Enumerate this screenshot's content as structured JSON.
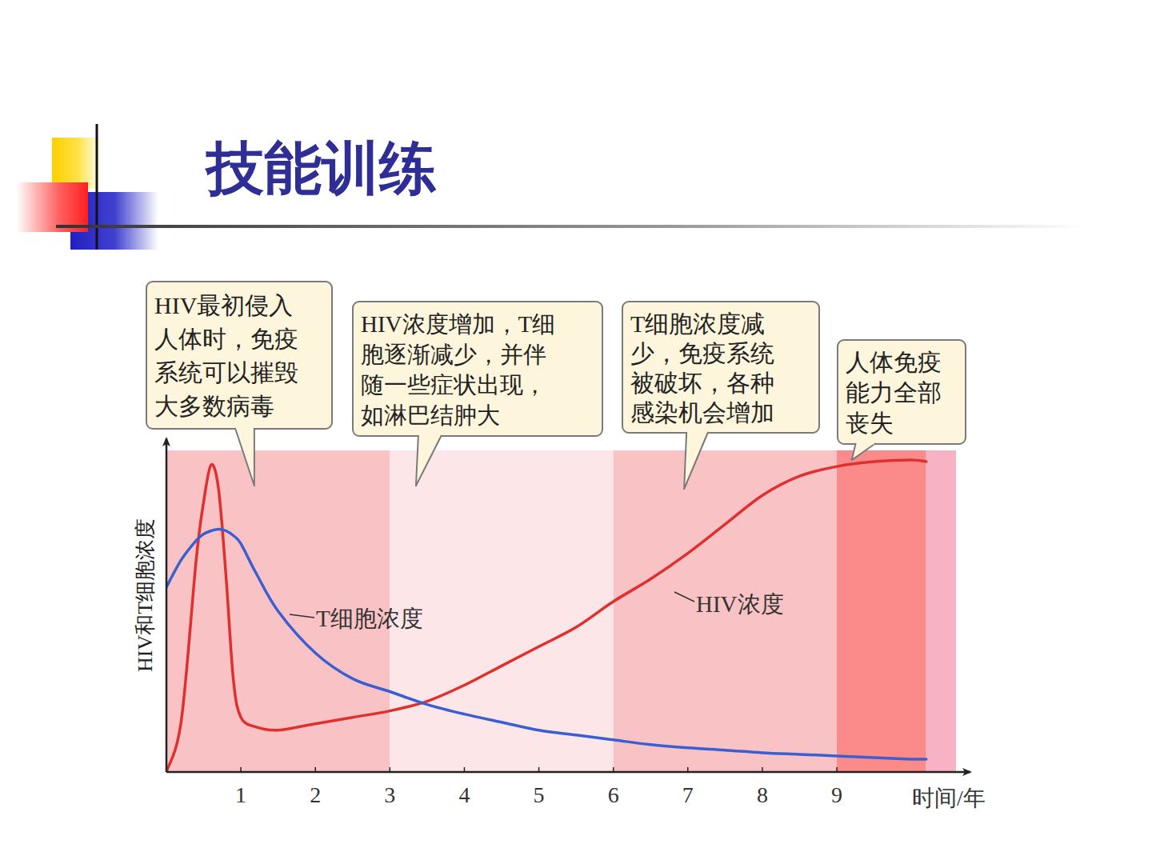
{
  "chart_data": {
    "type": "line",
    "title": "技能训练",
    "x_label": "时间/年",
    "y_label": "HIV和T细胞浓度",
    "x": [
      0,
      0.2,
      0.4,
      0.5,
      0.6,
      0.7,
      0.8,
      0.9,
      1,
      1.2,
      1.5,
      2,
      2.5,
      3,
      3.5,
      4,
      4.5,
      5,
      5.5,
      6,
      6.5,
      7,
      7.5,
      8,
      8.5,
      9,
      9.5,
      10,
      10.2
    ],
    "series": [
      {
        "name": "HIV浓度",
        "color": "#e0302e",
        "values": [
          0,
          16,
          66,
          84,
          95.5,
          88,
          61,
          28.5,
          17,
          14,
          13,
          15,
          17,
          19,
          22,
          27,
          33,
          39,
          45,
          53,
          60,
          68,
          77,
          86,
          92,
          95,
          96.5,
          97,
          96.5
        ]
      },
      {
        "name": "T细胞浓度",
        "color": "#3a5fd0",
        "values": [
          57.5,
          66,
          72,
          74,
          75,
          75.5,
          75,
          73.5,
          71,
          62,
          50,
          37,
          29,
          25,
          21,
          18,
          15.5,
          13,
          11.5,
          10,
          8.5,
          7.5,
          6.8,
          6,
          5.5,
          5,
          4.5,
          4,
          4
        ]
      }
    ],
    "xlim": [
      0,
      10.6
    ],
    "xticks": [
      1,
      2,
      3,
      4,
      5,
      6,
      7,
      8,
      9
    ],
    "ylim": [
      0,
      100
    ],
    "tick_labels": "x",
    "grid": false,
    "phases": [
      {
        "start": 0,
        "end": 3,
        "color": "#f9c3c6"
      },
      {
        "start": 3,
        "end": 6,
        "color": "#fde6e8"
      },
      {
        "start": 6,
        "end": 9,
        "color": "#f9c3c6"
      },
      {
        "start": 9,
        "end": 10.2,
        "color": "#fb8b8a"
      },
      {
        "start": 10.2,
        "end": 10.6,
        "color": "#f7b3c4"
      }
    ],
    "annotations": [
      {
        "lines": [
          "HIV最初侵入",
          "人体时，免疫",
          "系统可以摧毁",
          "大多数病毒"
        ],
        "x": 1.18,
        "y": 89
      },
      {
        "lines": [
          "HIV浓度增加，T细",
          "胞逐渐减少，并伴",
          "随一些症状出现，",
          "如淋巴结肿大"
        ],
        "x": 3.35,
        "y": 89
      },
      {
        "lines": [
          "T细胞浓度减",
          "少，免疫系统",
          "被破坏，各种",
          "感染机会增加"
        ],
        "x": 6.95,
        "y": 88
      },
      {
        "lines": [
          "人体免疫",
          "能力全部",
          "丧失"
        ],
        "x": 9.2,
        "y": 97
      }
    ]
  }
}
